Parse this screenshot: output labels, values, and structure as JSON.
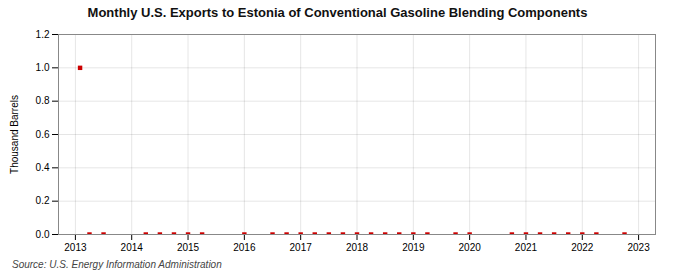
{
  "chart_data": {
    "type": "scatter",
    "title": "Monthly U.S. Exports to Estonia of Conventional Gasoline Blending Components",
    "ylabel": "Thousand Barrels",
    "source": "Source: U.S. Energy Information Administration",
    "x": [
      2013.083,
      2013.25,
      2013.5,
      2014.25,
      2014.5,
      2014.75,
      2015.0,
      2015.25,
      2016.0,
      2016.5,
      2016.75,
      2017.0,
      2017.25,
      2017.5,
      2017.75,
      2018.0,
      2018.25,
      2018.5,
      2018.75,
      2019.0,
      2019.25,
      2019.75,
      2020.0,
      2020.75,
      2021.0,
      2021.25,
      2021.5,
      2021.75,
      2022.0,
      2022.25,
      2022.75
    ],
    "values": [
      1.0,
      0.0,
      0.0,
      0.0,
      0.0,
      0.0,
      0.0,
      0.0,
      0.0,
      0.0,
      0.0,
      0.0,
      0.0,
      0.0,
      0.0,
      0.0,
      0.0,
      0.0,
      0.0,
      0.0,
      0.0,
      0.0,
      0.0,
      0.0,
      0.0,
      0.0,
      0.0,
      0.0,
      0.0,
      0.0,
      0.0
    ],
    "color": "#cc0000",
    "marker": "square",
    "xlim": [
      2012.7,
      2023.3
    ],
    "xticks": [
      2013,
      2014,
      2015,
      2016,
      2017,
      2018,
      2019,
      2020,
      2021,
      2022,
      2023
    ],
    "ylim": [
      0.0,
      1.2
    ],
    "yticks": [
      {
        "value": 0,
        "label": "0.0"
      },
      0.2,
      0.4,
      0.6,
      0.8,
      {
        "value": 1,
        "label": "1.0"
      },
      1.2
    ],
    "grid": true
  }
}
